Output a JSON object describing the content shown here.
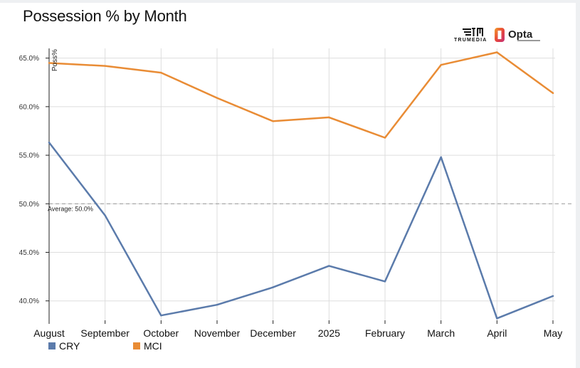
{
  "title": "Possession % by Month",
  "logos": {
    "trumedia_text": "TRUMEDIA",
    "opta_text": "Opta",
    "trumedia_icon": "trumedia-logo",
    "opta_icon": "opta-logo"
  },
  "colors": {
    "CRY": "#5b7bab",
    "MCI": "#e98c35",
    "grid": "#dddddd",
    "average_line": "#999999"
  },
  "chart_data": {
    "type": "line",
    "title": "Possession % by Month",
    "ylabel": "Poss%",
    "xlabel": "",
    "categories": [
      "August",
      "September",
      "October",
      "November",
      "December",
      "2025",
      "February",
      "March",
      "April",
      "May"
    ],
    "ylim": [
      38.0,
      66.0
    ],
    "yticks": [
      40.0,
      45.0,
      50.0,
      55.0,
      60.0,
      65.0
    ],
    "ytick_labels": [
      "40.0%",
      "45.0%",
      "50.0%",
      "55.0%",
      "60.0%",
      "65.0%"
    ],
    "grid": true,
    "legend_position": "bottom-left",
    "average": {
      "value": 50.0,
      "label": "Average: 50.0%"
    },
    "series": [
      {
        "name": "CRY",
        "values": [
          56.3,
          48.8,
          38.5,
          39.6,
          41.4,
          43.6,
          42.0,
          54.8,
          38.2,
          40.5
        ]
      },
      {
        "name": "MCI",
        "values": [
          64.5,
          64.2,
          63.5,
          60.9,
          58.5,
          58.9,
          56.8,
          64.3,
          65.6,
          61.4
        ]
      }
    ]
  }
}
